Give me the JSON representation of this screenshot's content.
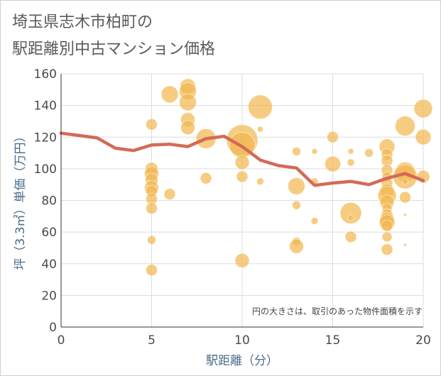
{
  "title_lines": [
    "埼玉県志木市柏町の",
    "駅距離別中古マンション価格"
  ],
  "chart_data": {
    "type": "scatter",
    "title": "埼玉県志木市柏町の駅距離別中古マンション価格",
    "xlabel": "駅距離（分）",
    "ylabel": "坪（3.3㎡）単価（万円）",
    "xlim": [
      0,
      20
    ],
    "ylim": [
      0,
      160
    ],
    "xticks": [
      0,
      5,
      10,
      15,
      20
    ],
    "yticks": [
      0,
      20,
      40,
      60,
      80,
      100,
      120,
      140,
      160
    ],
    "grid": true,
    "note": "円の大きさは、取引のあった物件面積を示す",
    "colors": {
      "bubble": "#f2b64f",
      "line": "#d46a56"
    },
    "points": [
      {
        "x": 5,
        "y": 128,
        "s": 8
      },
      {
        "x": 5,
        "y": 100,
        "s": 9
      },
      {
        "x": 5,
        "y": 97,
        "s": 10
      },
      {
        "x": 5,
        "y": 93,
        "s": 9
      },
      {
        "x": 5,
        "y": 88,
        "s": 10
      },
      {
        "x": 5,
        "y": 86,
        "s": 8
      },
      {
        "x": 5,
        "y": 81,
        "s": 8
      },
      {
        "x": 5,
        "y": 75,
        "s": 8
      },
      {
        "x": 5,
        "y": 55,
        "s": 6
      },
      {
        "x": 5,
        "y": 36,
        "s": 8
      },
      {
        "x": 6,
        "y": 147,
        "s": 12
      },
      {
        "x": 6,
        "y": 84,
        "s": 8
      },
      {
        "x": 7,
        "y": 152,
        "s": 11
      },
      {
        "x": 7,
        "y": 149,
        "s": 12
      },
      {
        "x": 7,
        "y": 142,
        "s": 12
      },
      {
        "x": 7,
        "y": 131,
        "s": 10
      },
      {
        "x": 7,
        "y": 126,
        "s": 10
      },
      {
        "x": 8,
        "y": 119,
        "s": 14
      },
      {
        "x": 8,
        "y": 94,
        "s": 8
      },
      {
        "x": 10,
        "y": 118,
        "s": 22
      },
      {
        "x": 10,
        "y": 115,
        "s": 18
      },
      {
        "x": 10,
        "y": 104,
        "s": 10
      },
      {
        "x": 10,
        "y": 95,
        "s": 8
      },
      {
        "x": 10,
        "y": 42,
        "s": 10
      },
      {
        "x": 11,
        "y": 139,
        "s": 17
      },
      {
        "x": 11,
        "y": 125,
        "s": 4
      },
      {
        "x": 11,
        "y": 92,
        "s": 5
      },
      {
        "x": 13,
        "y": 111,
        "s": 6
      },
      {
        "x": 13,
        "y": 89,
        "s": 12
      },
      {
        "x": 13,
        "y": 77,
        "s": 6
      },
      {
        "x": 13,
        "y": 54,
        "s": 6
      },
      {
        "x": 13,
        "y": 51,
        "s": 10
      },
      {
        "x": 14,
        "y": 111,
        "s": 4
      },
      {
        "x": 14,
        "y": 92,
        "s": 5
      },
      {
        "x": 14,
        "y": 67,
        "s": 5
      },
      {
        "x": 15,
        "y": 120,
        "s": 8
      },
      {
        "x": 15,
        "y": 103,
        "s": 11
      },
      {
        "x": 16,
        "y": 111,
        "s": 4
      },
      {
        "x": 16,
        "y": 104,
        "s": 5
      },
      {
        "x": 16,
        "y": 72,
        "s": 15
      },
      {
        "x": 16,
        "y": 69,
        "s": 4
      },
      {
        "x": 16,
        "y": 57,
        "s": 8
      },
      {
        "x": 17,
        "y": 110,
        "s": 6
      },
      {
        "x": 18,
        "y": 114,
        "s": 11
      },
      {
        "x": 18,
        "y": 109,
        "s": 8
      },
      {
        "x": 18,
        "y": 105,
        "s": 8
      },
      {
        "x": 18,
        "y": 99,
        "s": 8
      },
      {
        "x": 18,
        "y": 95,
        "s": 7
      },
      {
        "x": 18,
        "y": 91,
        "s": 8
      },
      {
        "x": 18,
        "y": 86,
        "s": 10
      },
      {
        "x": 18,
        "y": 83,
        "s": 13
      },
      {
        "x": 18,
        "y": 79,
        "s": 10
      },
      {
        "x": 18,
        "y": 75,
        "s": 7
      },
      {
        "x": 18,
        "y": 71,
        "s": 8
      },
      {
        "x": 18,
        "y": 68,
        "s": 10
      },
      {
        "x": 18,
        "y": 66,
        "s": 11
      },
      {
        "x": 18,
        "y": 64,
        "s": 8
      },
      {
        "x": 18,
        "y": 57,
        "s": 7
      },
      {
        "x": 18,
        "y": 49,
        "s": 8
      },
      {
        "x": 19,
        "y": 127,
        "s": 14
      },
      {
        "x": 19,
        "y": 98,
        "s": 14
      },
      {
        "x": 19,
        "y": 95,
        "s": 17
      },
      {
        "x": 19,
        "y": 92,
        "s": 4
      },
      {
        "x": 19,
        "y": 82,
        "s": 8
      },
      {
        "x": 19,
        "y": 71,
        "s": 2
      },
      {
        "x": 19,
        "y": 52,
        "s": 2
      },
      {
        "x": 20,
        "y": 138,
        "s": 13
      },
      {
        "x": 20,
        "y": 120,
        "s": 11
      },
      {
        "x": 20,
        "y": 95,
        "s": 9
      }
    ],
    "series": [
      {
        "x": [
          0,
          1,
          2,
          3,
          4,
          5,
          6,
          7,
          8,
          9,
          10,
          11,
          12,
          13,
          14,
          15,
          16,
          17,
          18,
          19,
          20
        ],
        "values": [
          122.5,
          121,
          119.5,
          113,
          111.5,
          115,
          115.5,
          114,
          119,
          120.5,
          114,
          105.5,
          102,
          100.5,
          89.5,
          91,
          92,
          90,
          94,
          97,
          92.5
        ]
      }
    ]
  }
}
